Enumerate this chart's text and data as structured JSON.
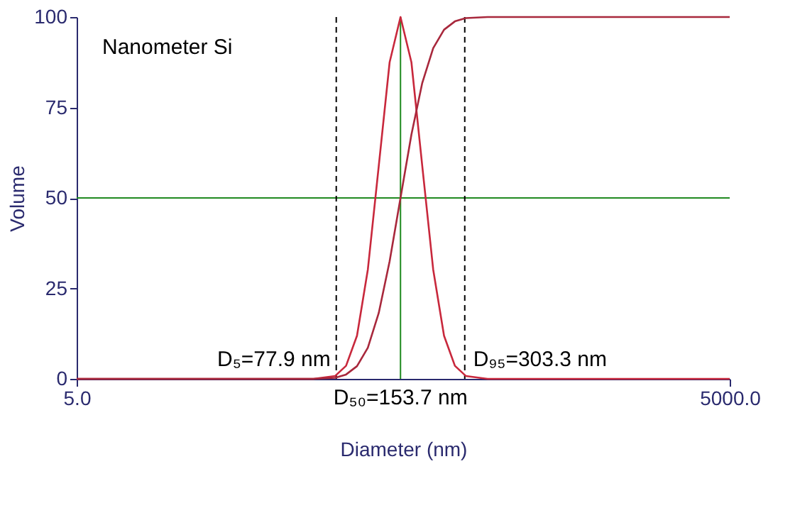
{
  "chart_data": {
    "type": "line",
    "annotations": [
      "Nanometer Si"
    ],
    "xlabel": "Diameter (nm)",
    "ylabel": "Volume",
    "log": "x",
    "xlim": [
      5,
      5000
    ],
    "xticks": [
      {
        "value": 5,
        "label": "5.0"
      },
      {
        "value": 5000,
        "label": "5000.0"
      }
    ],
    "ylim": [
      0,
      100
    ],
    "yticks": [
      0,
      25,
      50,
      75,
      100
    ],
    "grid": false,
    "marker": "none",
    "line_style": "solid",
    "series": [
      {
        "color": "#c8283c",
        "x": [
          5,
          61.2,
          77.0,
          86.4,
          97.0,
          108.8,
          122.1,
          137.0,
          153.7,
          172.5,
          193.5,
          217.2,
          243.6,
          273.3,
          306.7,
          386.1,
          5000
        ],
        "values": [
          0,
          0,
          0.8,
          3.6,
          11.9,
          30.2,
          58.8,
          87.5,
          100,
          87.5,
          58.8,
          30.2,
          11.9,
          3.6,
          0.8,
          0,
          0
        ]
      },
      {
        "color": "#a8283c",
        "x": [
          5,
          61.2,
          77.0,
          86.4,
          97.0,
          108.8,
          122.1,
          137.0,
          153.7,
          172.5,
          193.5,
          217.2,
          243.6,
          273.3,
          306.7,
          386.1,
          5000
        ],
        "values": [
          0,
          0,
          0.3,
          1.2,
          3.5,
          8.6,
          18.2,
          32.5,
          50,
          67.5,
          81.8,
          91.4,
          96.5,
          98.8,
          99.7,
          100,
          100
        ]
      }
    ],
    "ref_lines": [
      {
        "axis": "x",
        "value": 77.9,
        "label": "D₅=77.9 nm",
        "color": "#000000",
        "line_style": "dashed"
      },
      {
        "axis": "x",
        "value": 153.7,
        "label": "D₅₀=153.7 nm",
        "color": "#208a20",
        "line_style": "solid"
      },
      {
        "axis": "x",
        "value": 303.3,
        "label": "D₉₅=303.3 nm",
        "color": "#000000",
        "line_style": "dashed"
      },
      {
        "axis": "y",
        "value": 50,
        "label": null,
        "color": "#208a20",
        "line_style": "solid"
      }
    ]
  }
}
